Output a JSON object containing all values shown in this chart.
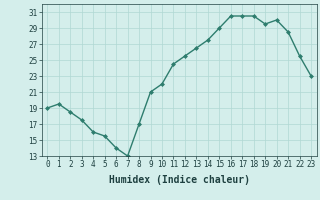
{
  "x": [
    0,
    1,
    2,
    3,
    4,
    5,
    6,
    7,
    8,
    9,
    10,
    11,
    12,
    13,
    14,
    15,
    16,
    17,
    18,
    19,
    20,
    21,
    22,
    23
  ],
  "y": [
    19,
    19.5,
    18.5,
    17.5,
    16,
    15.5,
    14,
    13,
    17,
    21,
    22,
    24.5,
    25.5,
    26.5,
    27.5,
    29,
    30.5,
    30.5,
    30.5,
    29.5,
    30,
    28.5,
    25.5,
    23
  ],
  "xlabel": "Humidex (Indice chaleur)",
  "xlim": [
    -0.5,
    23.5
  ],
  "ylim": [
    13,
    32
  ],
  "yticks": [
    13,
    15,
    17,
    19,
    21,
    23,
    25,
    27,
    29,
    31
  ],
  "xticks": [
    0,
    1,
    2,
    3,
    4,
    5,
    6,
    7,
    8,
    9,
    10,
    11,
    12,
    13,
    14,
    15,
    16,
    17,
    18,
    19,
    20,
    21,
    22,
    23
  ],
  "line_color": "#2e7d6e",
  "marker": "D",
  "marker_size": 2.0,
  "bg_color": "#d4eeeb",
  "grid_color": "#b0d8d4",
  "font_color": "#1e4040",
  "tick_fontsize": 5.5,
  "xlabel_fontsize": 7.0,
  "linewidth": 1.0
}
